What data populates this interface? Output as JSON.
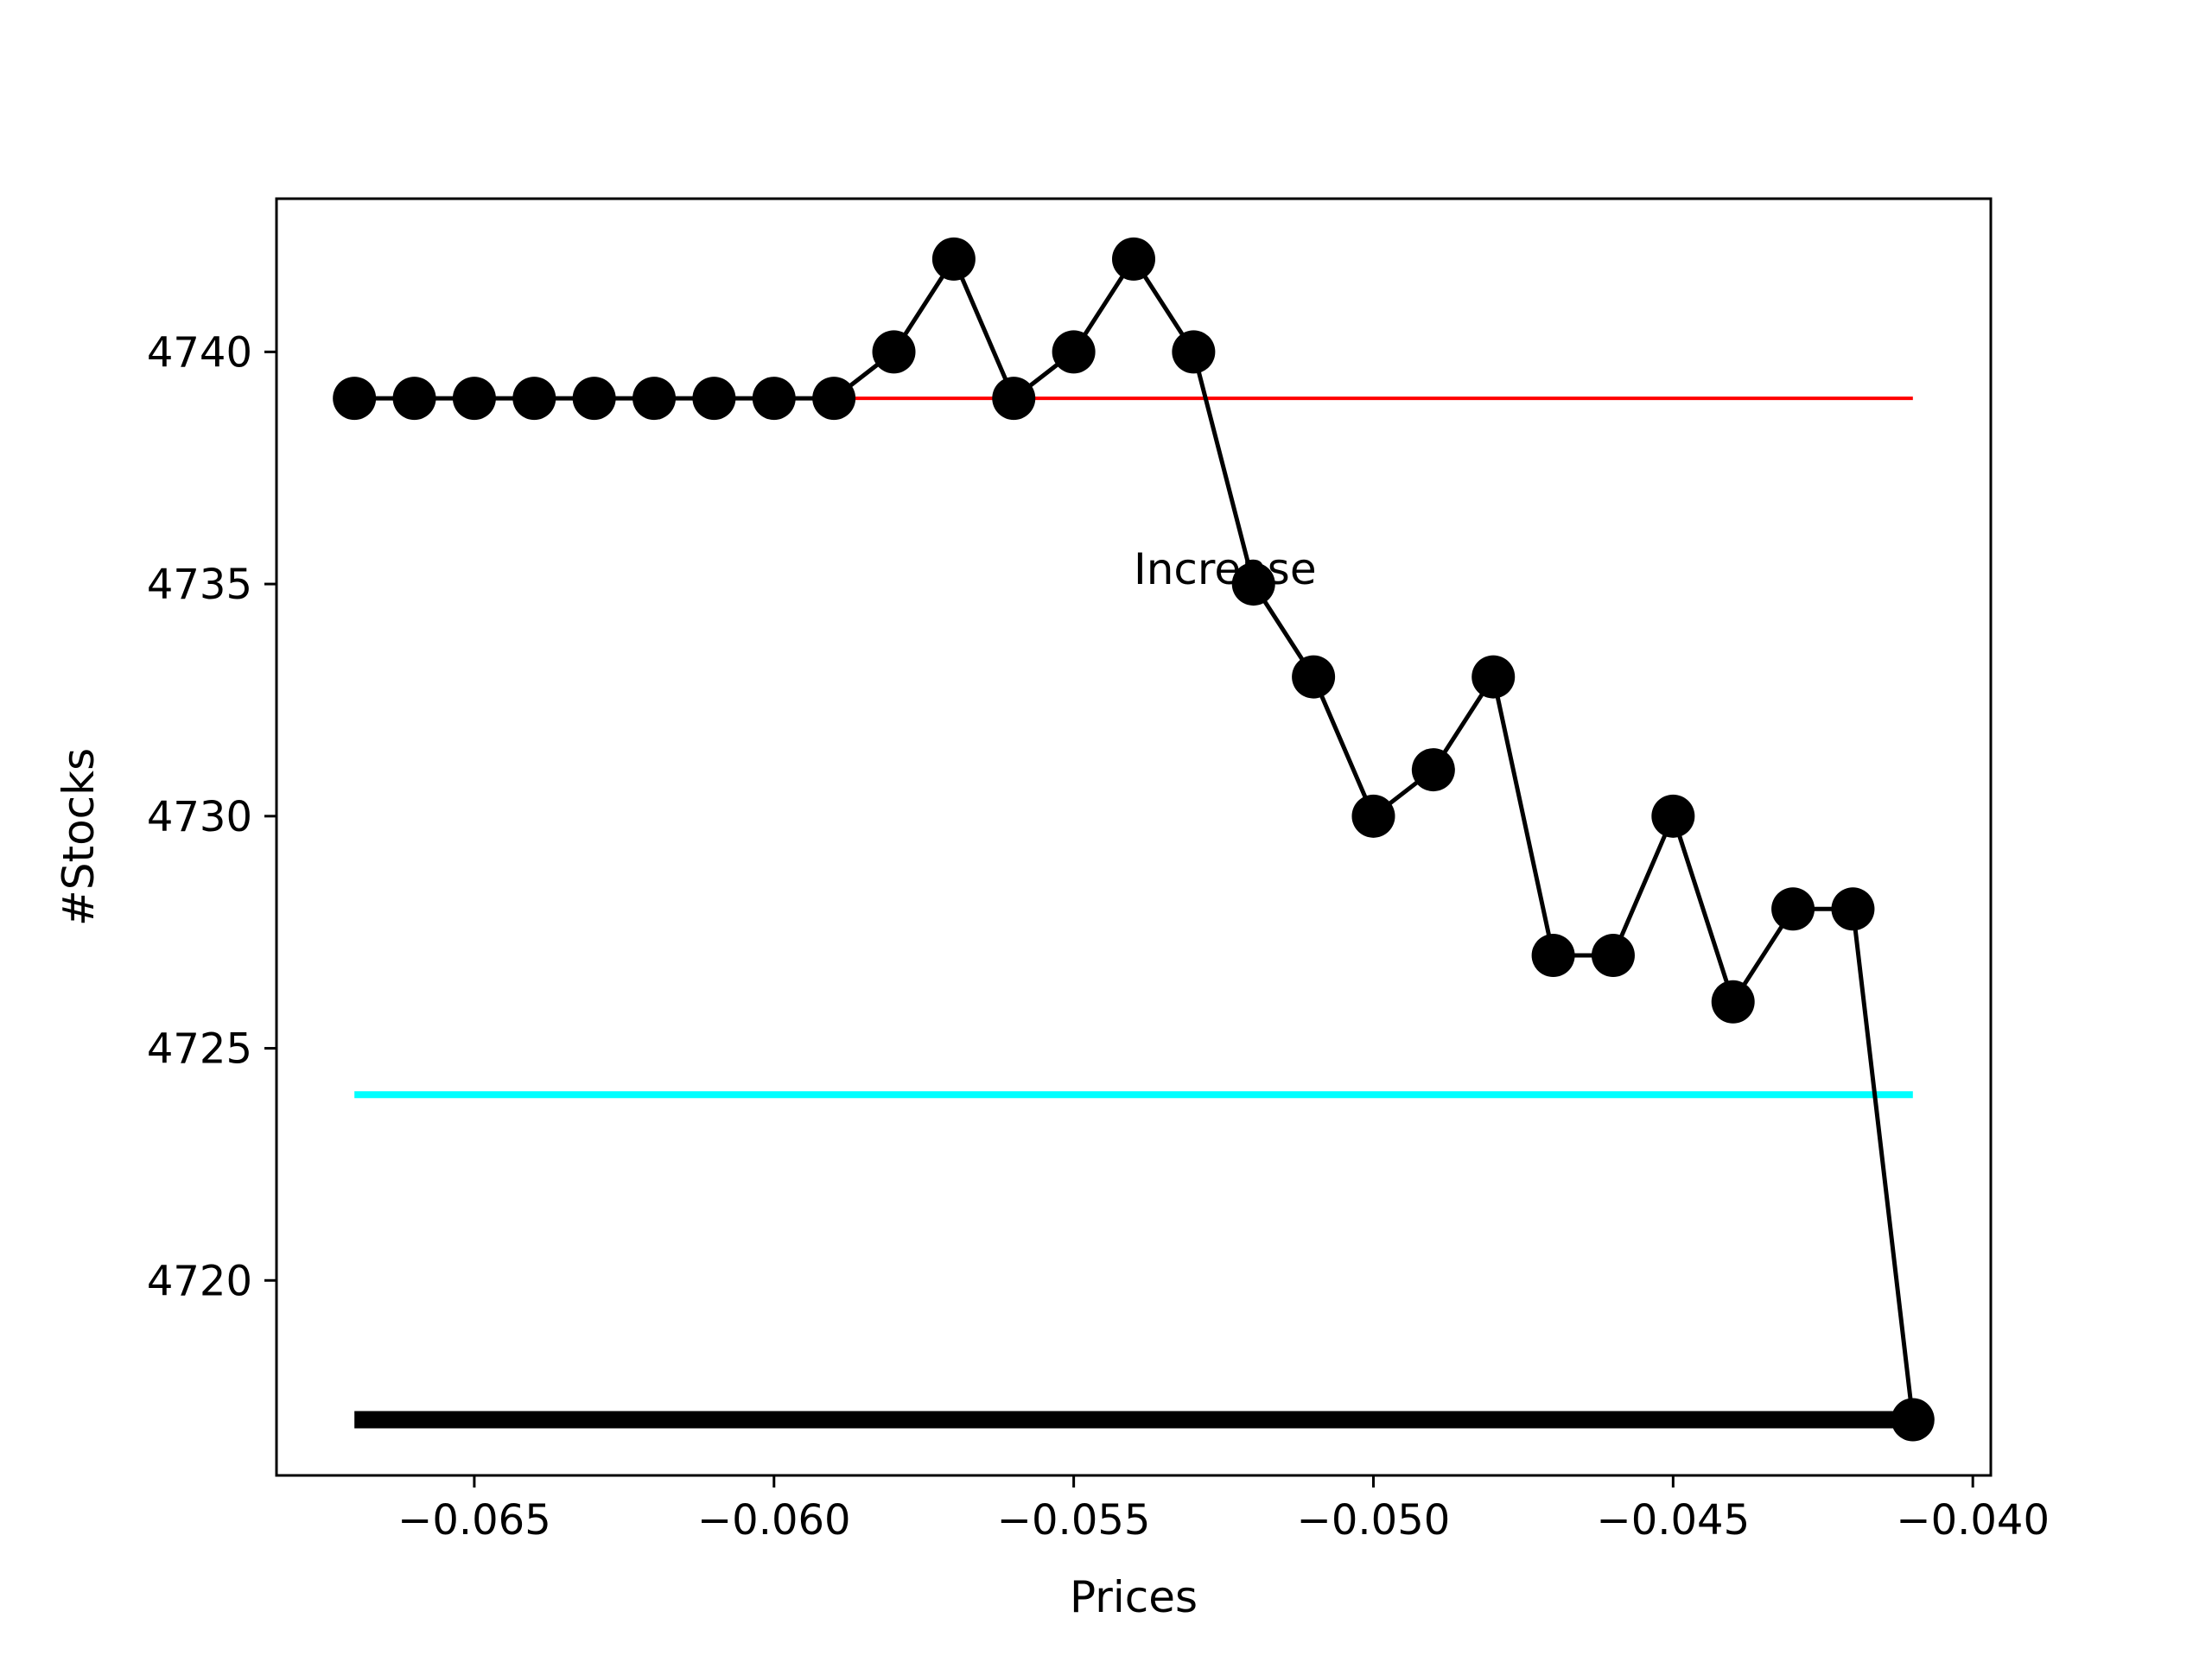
{
  "chart_data": {
    "type": "line",
    "title": "",
    "xlabel": "Prices",
    "ylabel": "#Stocks",
    "xlim": [
      -0.0683,
      -0.0397
    ],
    "ylim": [
      4715.8,
      4743.3
    ],
    "x_ticks": [
      -0.065,
      -0.06,
      -0.055,
      -0.05,
      -0.045,
      -0.04
    ],
    "x_tick_labels": [
      "−0.065",
      "−0.060",
      "−0.055",
      "−0.050",
      "−0.045",
      "−0.040"
    ],
    "y_ticks": [
      4720,
      4725,
      4730,
      4735,
      4740
    ],
    "y_tick_labels": [
      "4720",
      "4725",
      "4730",
      "4735",
      "4740"
    ],
    "grid": false,
    "legend": null,
    "series": [
      {
        "x": [
          -0.067,
          -0.066,
          -0.065,
          -0.064,
          -0.063,
          -0.062,
          -0.061,
          -0.06,
          -0.059,
          -0.058,
          -0.057,
          -0.056,
          -0.055,
          -0.054,
          -0.053,
          -0.052,
          -0.051,
          -0.05,
          -0.049,
          -0.048,
          -0.047,
          -0.046,
          -0.045,
          -0.044,
          -0.043,
          -0.042,
          -0.041
        ],
        "values": [
          4739,
          4739,
          4739,
          4739,
          4739,
          4739,
          4739,
          4739,
          4739,
          4740,
          4742,
          4739,
          4740,
          4742,
          4740,
          4735,
          4733,
          4730,
          4731,
          4733,
          4727,
          4727,
          4730,
          4726,
          4728,
          4728,
          4717
        ],
        "color": "#000000",
        "marker": "circle"
      }
    ],
    "hlines": [
      {
        "y": 4739,
        "x_range": [
          -0.067,
          -0.041
        ],
        "color": "#ff0000",
        "style": "thin"
      },
      {
        "y": 4724,
        "x_range": [
          -0.067,
          -0.041
        ],
        "color": "#00ffff",
        "style": "medium"
      },
      {
        "y": 4717,
        "x_range": [
          -0.067,
          -0.041
        ],
        "color": "#000000",
        "style": "thick"
      }
    ],
    "annotations": [
      {
        "text": "Increase",
        "x": -0.054,
        "y": 4735
      }
    ]
  }
}
